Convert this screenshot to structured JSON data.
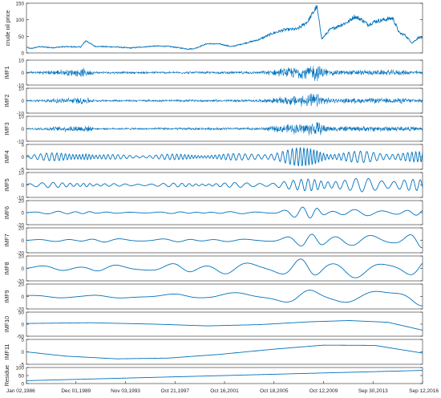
{
  "chart_data": {
    "type": "line",
    "color": "#0072BD",
    "frame_color": "#262626",
    "xticks": [
      "Jan 02,1986",
      "Dec 01,1989",
      "Nov 03,1993",
      "Oct 21,1997",
      "Oct 16,2001",
      "Oct 18,2005",
      "Oct 12,2009",
      "Sep 30,2013",
      "Sep 12,2016"
    ],
    "panels": [
      {
        "ylabel": "crude oil price",
        "yticks": [
          0,
          50,
          100,
          150
        ],
        "ylim": [
          0,
          150
        ],
        "approx_series": [
          [
            1986,
            18
          ],
          [
            1986.3,
            13
          ],
          [
            1987,
            19
          ],
          [
            1988,
            16
          ],
          [
            1989,
            19
          ],
          [
            1990.2,
            18
          ],
          [
            1990.6,
            37
          ],
          [
            1990.9,
            30
          ],
          [
            1991.3,
            20
          ],
          [
            1993,
            18
          ],
          [
            1994,
            15
          ],
          [
            1996,
            21
          ],
          [
            1997,
            20
          ],
          [
            1998.5,
            12
          ],
          [
            1999,
            13
          ],
          [
            2000,
            28
          ],
          [
            2001,
            27
          ],
          [
            2001.9,
            19
          ],
          [
            2003,
            30
          ],
          [
            2004,
            40
          ],
          [
            2005,
            58
          ],
          [
            2006,
            70
          ],
          [
            2007,
            72
          ],
          [
            2007.8,
            95
          ],
          [
            2008.5,
            140
          ],
          [
            2008.9,
            42
          ],
          [
            2009.5,
            70
          ],
          [
            2010,
            78
          ],
          [
            2011,
            95
          ],
          [
            2011.4,
            110
          ],
          [
            2012,
            100
          ],
          [
            2012.5,
            85
          ],
          [
            2013,
            95
          ],
          [
            2014.4,
            105
          ],
          [
            2014.9,
            60
          ],
          [
            2015.3,
            55
          ],
          [
            2015.9,
            30
          ],
          [
            2016.4,
            47
          ],
          [
            2016.7,
            45
          ]
        ]
      },
      {
        "ylabel": "IMF1",
        "yticks": [
          -10,
          0,
          10
        ],
        "ylim": [
          -10,
          10
        ],
        "style": "noise",
        "amp": [
          [
            1986,
            0.8
          ],
          [
            1990.6,
            4
          ],
          [
            1991.3,
            1
          ],
          [
            2004,
            1.2
          ],
          [
            2008.5,
            8
          ],
          [
            2009.5,
            2.5
          ],
          [
            2015,
            2.5
          ],
          [
            2016.7,
            1.5
          ]
        ]
      },
      {
        "ylabel": "IMF2",
        "yticks": [
          -10,
          0,
          10
        ],
        "ylim": [
          -10,
          10
        ],
        "style": "noise",
        "amp": [
          [
            1986,
            0.7
          ],
          [
            1990.6,
            3.5
          ],
          [
            1991.3,
            0.9
          ],
          [
            2004,
            1.2
          ],
          [
            2008.5,
            7
          ],
          [
            2009.5,
            2.2
          ],
          [
            2015,
            2.5
          ],
          [
            2016.7,
            1.5
          ]
        ]
      },
      {
        "ylabel": "IMF3",
        "yticks": [
          -10,
          0,
          10
        ],
        "ylim": [
          -10,
          10
        ],
        "style": "noise",
        "amp": [
          [
            1986,
            0.7
          ],
          [
            1990.6,
            3.5
          ],
          [
            1991.3,
            0.8
          ],
          [
            2004,
            1.3
          ],
          [
            2008.5,
            7
          ],
          [
            2009.5,
            2.5
          ],
          [
            2015,
            2.5
          ],
          [
            2016.7,
            1.5
          ]
        ]
      },
      {
        "ylabel": "IMF4",
        "yticks": [
          -5,
          0,
          5
        ],
        "ylim": [
          -5,
          5
        ],
        "style": "wave",
        "period": 0.45,
        "amp": [
          [
            1986,
            1
          ],
          [
            1990.6,
            2.5
          ],
          [
            1991.3,
            0.9
          ],
          [
            2003,
            1.4
          ],
          [
            2008.5,
            4.5
          ],
          [
            2009.5,
            2.2
          ],
          [
            2015,
            2.5
          ],
          [
            2016.7,
            2
          ]
        ]
      },
      {
        "ylabel": "IMF5",
        "yticks": [
          -10,
          0,
          10
        ],
        "ylim": [
          -10,
          10
        ],
        "style": "wave",
        "period": 0.9,
        "amp": [
          [
            1986,
            1.5
          ],
          [
            1990.6,
            3
          ],
          [
            1991.3,
            1
          ],
          [
            2003,
            2
          ],
          [
            2007,
            4
          ],
          [
            2008.5,
            7
          ],
          [
            2011,
            5
          ],
          [
            2014.7,
            7
          ],
          [
            2016.7,
            4
          ]
        ]
      },
      {
        "ylabel": "IMF6",
        "yticks": [
          -20,
          0,
          20
        ],
        "ylim": [
          -20,
          20
        ],
        "style": "wave",
        "period": 2,
        "amp": [
          [
            1986,
            1
          ],
          [
            1990.6,
            4
          ],
          [
            1991.5,
            1
          ],
          [
            2005,
            2
          ],
          [
            2008.5,
            13
          ],
          [
            2009.5,
            5
          ],
          [
            2014.8,
            6
          ],
          [
            2016.7,
            4
          ]
        ]
      },
      {
        "ylabel": "IMF7",
        "yticks": [
          -20,
          0,
          20
        ],
        "ylim": [
          -20,
          20
        ],
        "style": "wave",
        "period": 3,
        "amp": [
          [
            1986,
            1
          ],
          [
            1990.6,
            3
          ],
          [
            2004,
            2
          ],
          [
            2007,
            8
          ],
          [
            2008.7,
            16
          ],
          [
            2011,
            9
          ],
          [
            2014.5,
            10
          ],
          [
            2016.7,
            12
          ]
        ]
      },
      {
        "ylabel": "IMF8",
        "yticks": [
          -20,
          0,
          20
        ],
        "ylim": [
          -20,
          20
        ],
        "style": "wave",
        "period": 4.2,
        "amp": [
          [
            1986,
            4
          ],
          [
            1995,
            6
          ],
          [
            2001,
            10
          ],
          [
            2005,
            12
          ],
          [
            2009,
            18
          ],
          [
            2013,
            14
          ],
          [
            2016.7,
            12
          ]
        ]
      },
      {
        "ylabel": "IMF9",
        "yticks": [
          -20,
          0,
          20
        ],
        "ylim": [
          -20,
          20
        ],
        "style": "wave",
        "period": 7,
        "phase": 1.8,
        "amp": [
          [
            1986,
            3
          ],
          [
            1995,
            3
          ],
          [
            2002,
            6
          ],
          [
            2007,
            13
          ],
          [
            2013,
            15
          ],
          [
            2016.7,
            15
          ]
        ]
      },
      {
        "ylabel": "IMF10",
        "yticks": [
          -50,
          0,
          50
        ],
        "ylim": [
          -50,
          50
        ],
        "approx_series": [
          [
            1986,
            3
          ],
          [
            1991,
            6
          ],
          [
            1996,
            0
          ],
          [
            2000,
            -7
          ],
          [
            2004,
            -2
          ],
          [
            2008,
            10
          ],
          [
            2011,
            15
          ],
          [
            2014,
            8
          ],
          [
            2016.7,
            -25
          ]
        ]
      },
      {
        "ylabel": "IMF11",
        "yticks": [
          -5,
          0,
          5
        ],
        "ylim": [
          -5,
          5
        ],
        "approx_series": [
          [
            1986,
            0
          ],
          [
            1989,
            -1.7
          ],
          [
            1993,
            -2.8
          ],
          [
            1997,
            -2.5
          ],
          [
            2001,
            -1
          ],
          [
            2005,
            1
          ],
          [
            2009,
            2.7
          ],
          [
            2013,
            2.6
          ],
          [
            2016.7,
            -0.5
          ]
        ]
      },
      {
        "ylabel": "Residue",
        "yticks": [
          0,
          50,
          100
        ],
        "ylim": [
          0,
          100
        ],
        "approx_series": [
          [
            1986,
            18
          ],
          [
            2016.7,
            82
          ]
        ]
      }
    ]
  }
}
